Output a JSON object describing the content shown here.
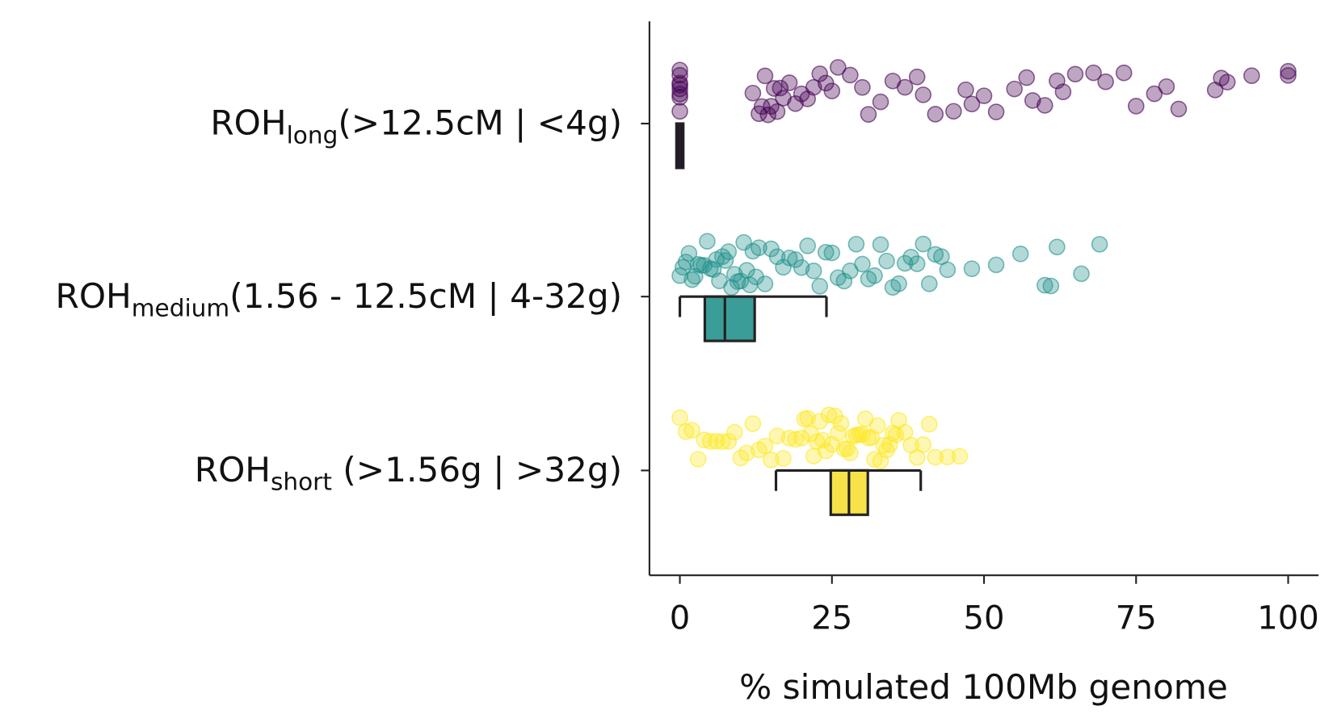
{
  "chart_data": {
    "type": "box_strip",
    "x_label": "% simulated 100Mb genome",
    "xlim": [
      -5,
      105
    ],
    "xticks": [
      0,
      25,
      50,
      75,
      100
    ],
    "series": [
      {
        "name": {
          "main": "ROH",
          "sub": "long",
          "rest": "(>12.5cM | <4g)"
        },
        "color": "#440154",
        "box_color": "#2a0b3a",
        "box": {
          "whislo": 0,
          "q1": 0,
          "med": 0,
          "q3": 0,
          "whishi": 0
        },
        "points": [
          0,
          0,
          0,
          0,
          0,
          0,
          0,
          0,
          12,
          13,
          13.5,
          14,
          14.5,
          15,
          15.5,
          16,
          16.5,
          17,
          18,
          19,
          20,
          21,
          22,
          23,
          24,
          25,
          26,
          28,
          30,
          31,
          33,
          35,
          37,
          39,
          40,
          42,
          45,
          47,
          48,
          50,
          52,
          55,
          57,
          58,
          60,
          62,
          63,
          65,
          68,
          70,
          73,
          75,
          78,
          80,
          82,
          88,
          89,
          90,
          94,
          100,
          100
        ]
      },
      {
        "name": {
          "main": "ROH",
          "sub": "medium",
          "rest": "(1.56 - 12.5cM | 4-32g)"
        },
        "color": "#21918c",
        "box_color": "#3a9d97",
        "box": {
          "whislo": 0,
          "q1": 4.1,
          "med": 7.4,
          "q3": 12.3,
          "whishi": 24.1
        },
        "points": [
          0,
          0.5,
          1,
          1.5,
          2,
          2.5,
          3,
          3.5,
          4,
          4.5,
          5,
          5.5,
          6,
          6.5,
          7,
          7.5,
          8,
          8.5,
          9,
          9.5,
          10,
          10.5,
          11,
          11.5,
          12,
          12.5,
          13,
          14,
          15,
          16,
          17,
          18,
          19,
          20,
          21,
          22,
          23,
          24,
          25,
          26,
          27,
          28,
          29,
          30,
          31,
          32,
          33,
          34,
          35,
          36,
          37,
          38,
          39,
          40,
          41,
          42,
          43,
          44,
          48,
          52,
          56,
          60,
          61,
          62,
          66,
          69
        ]
      },
      {
        "name": {
          "main": "ROH",
          "sub": "short",
          "rest": " (>1.56g | >32g)"
        },
        "color": "#fde725",
        "box_color": "#f7e24a",
        "box": {
          "whislo": 15.8,
          "q1": 24.8,
          "med": 27.8,
          "q3": 30.9,
          "whishi": 39.6
        },
        "points": [
          0,
          1,
          2,
          3,
          4,
          5,
          6,
          7,
          8,
          9,
          10,
          11,
          12,
          13,
          14,
          15,
          16,
          17,
          18,
          19,
          20,
          20.5,
          21,
          21.5,
          22,
          22.5,
          23,
          23.5,
          24,
          24.5,
          25,
          25.5,
          26,
          26.5,
          27,
          27.5,
          28,
          28.5,
          29,
          29.5,
          30,
          30.5,
          31,
          31.5,
          32,
          32.5,
          33,
          33.5,
          34,
          34.5,
          35,
          35.5,
          36,
          37,
          38,
          39,
          40,
          41,
          42,
          44,
          46
        ]
      }
    ]
  }
}
